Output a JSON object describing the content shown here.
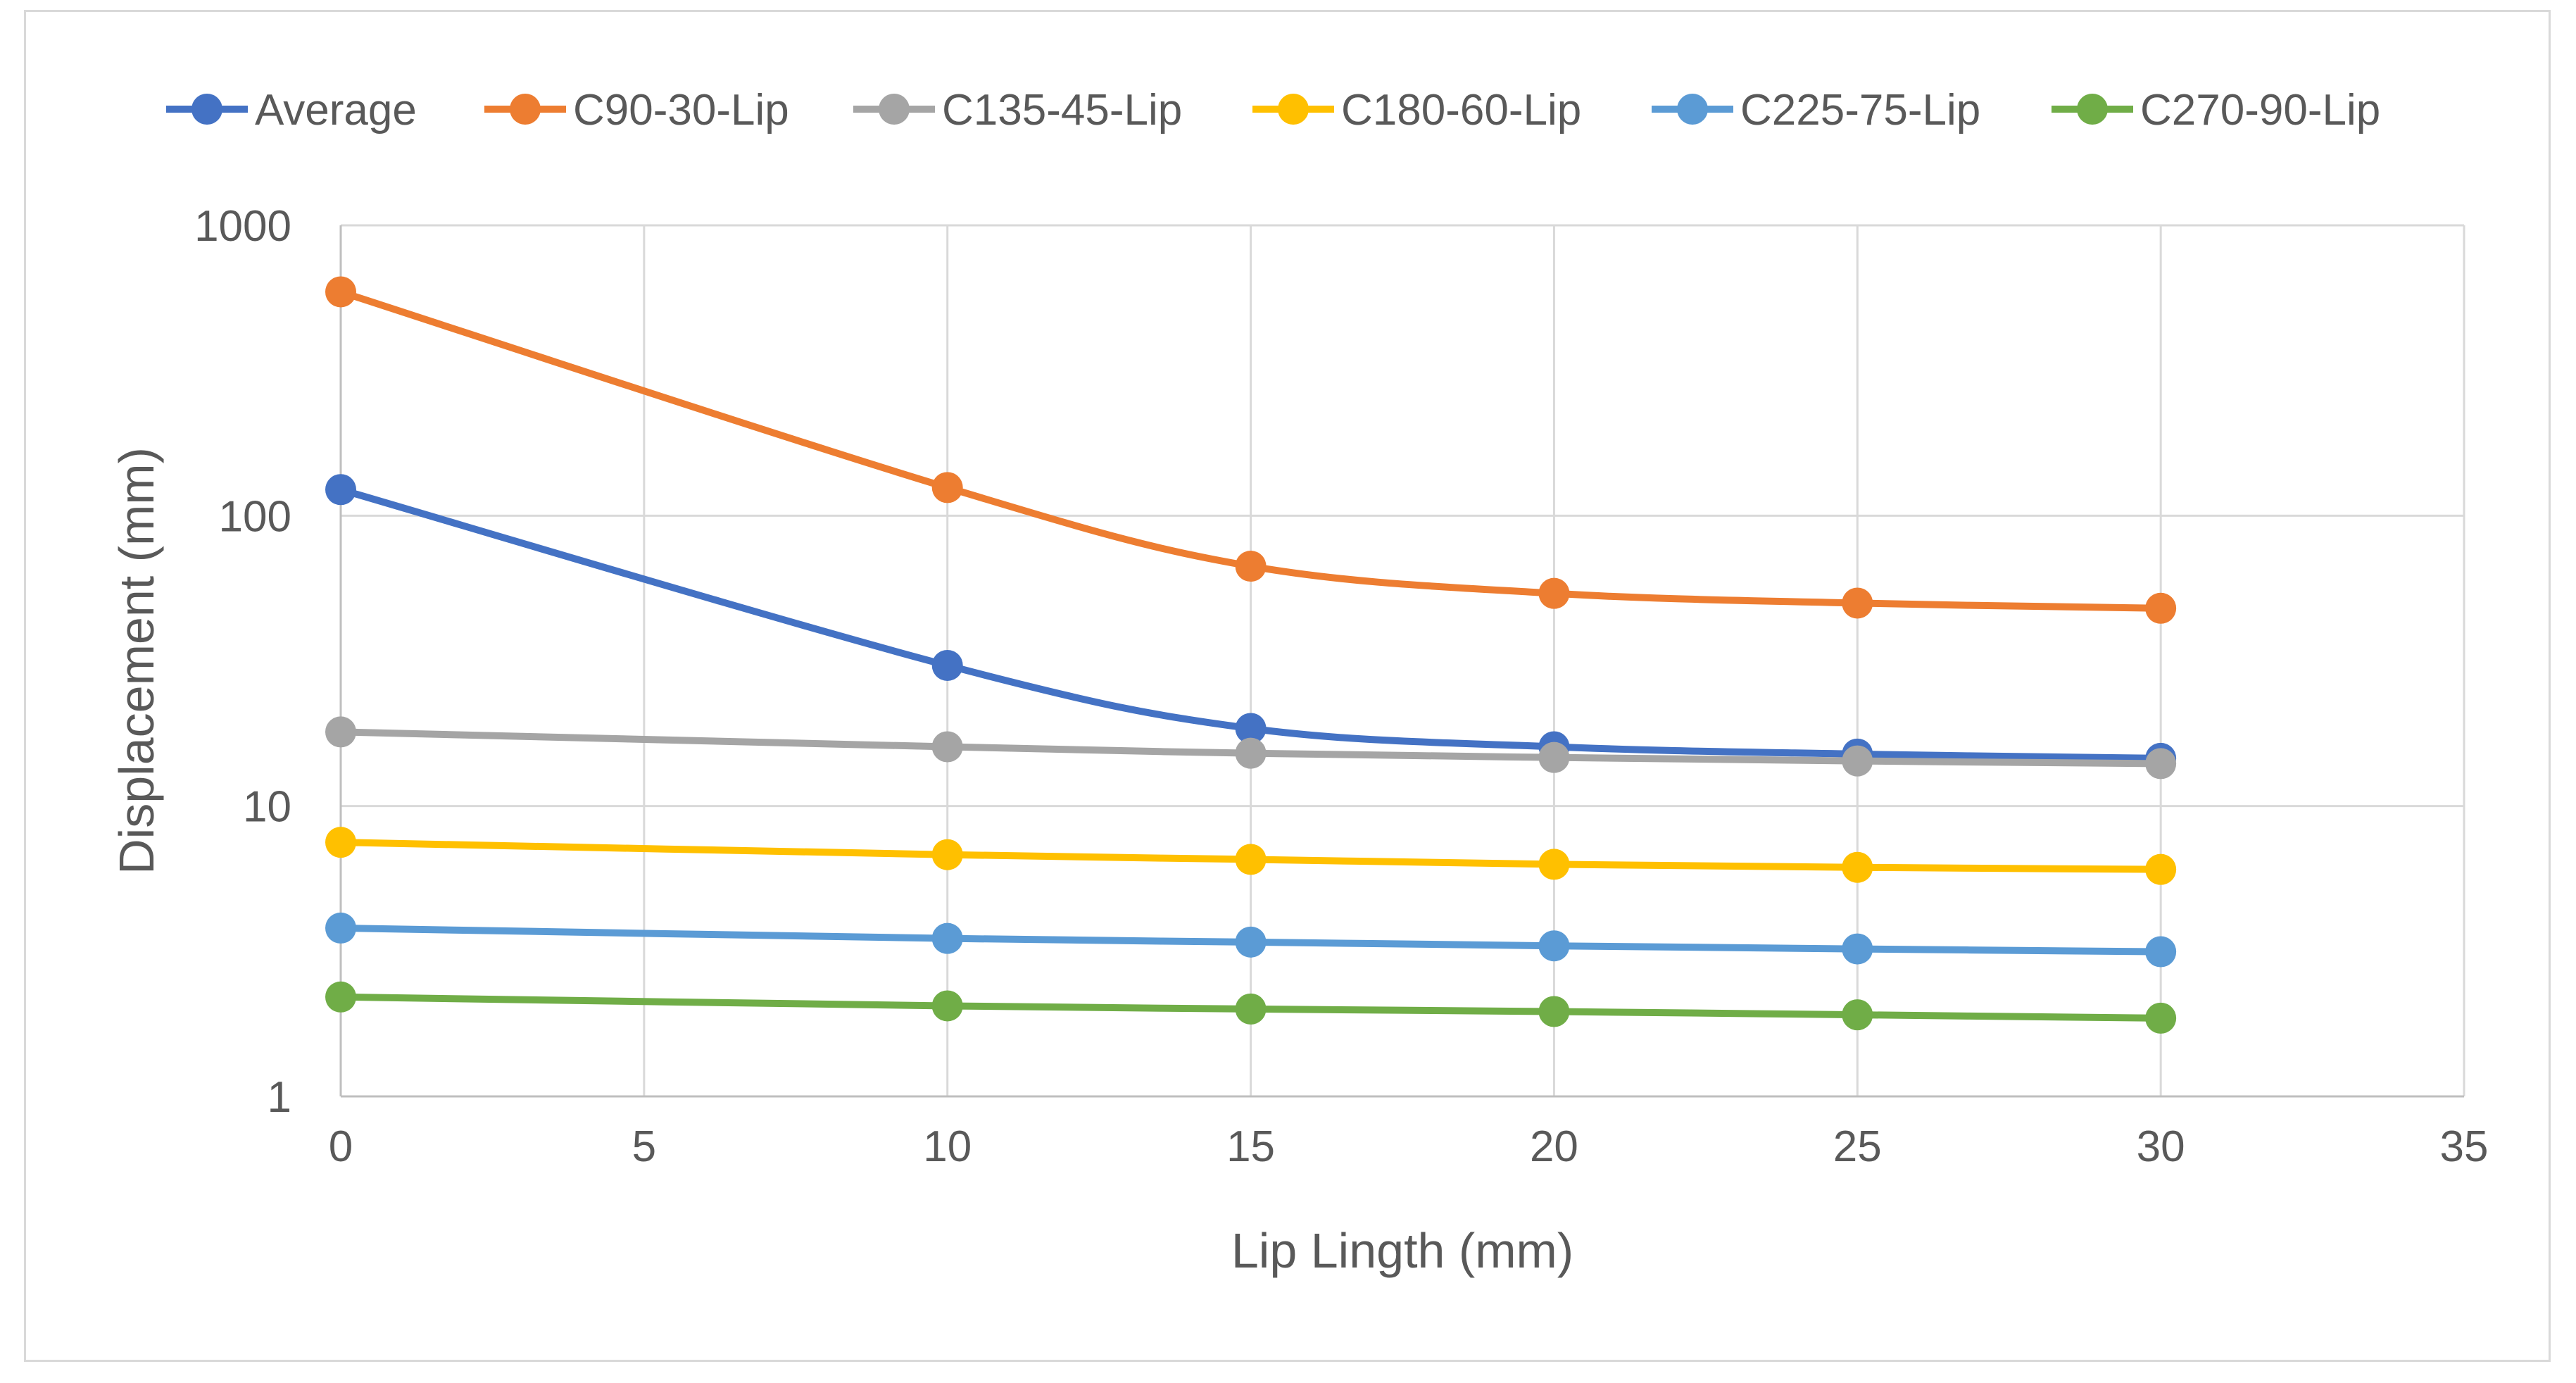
{
  "chart_data": {
    "type": "line",
    "title": "",
    "xlabel": "Lip Lingth (mm)",
    "ylabel": "Displacement (mm)",
    "xlim": [
      0,
      35
    ],
    "ylim": [
      1,
      1000
    ],
    "yscale": "log",
    "grid": true,
    "legend_position": "top",
    "x_ticks": [
      "0",
      "5",
      "10",
      "15",
      "20",
      "25",
      "30",
      "35"
    ],
    "x_tick_values": [
      0,
      5,
      10,
      15,
      20,
      25,
      30,
      35
    ],
    "y_ticks": [
      "1",
      "10",
      "100",
      "1000"
    ],
    "y_tick_values": [
      1,
      10,
      100,
      1000
    ],
    "x": [
      0,
      10,
      15,
      20,
      25,
      30
    ],
    "series": [
      {
        "name": "Average",
        "color": "#4472c4",
        "values": [
          123,
          30.5,
          18.5,
          16,
          15.1,
          14.6
        ]
      },
      {
        "name": "C90-30-Lip",
        "color": "#ed7d31",
        "values": [
          590,
          125,
          67,
          54,
          50,
          48
        ]
      },
      {
        "name": "C135-45-Lip",
        "color": "#a5a5a5",
        "values": [
          18,
          16,
          15.2,
          14.7,
          14.3,
          14
        ]
      },
      {
        "name": "C180-60-Lip",
        "color": "#ffc000",
        "values": [
          7.5,
          6.8,
          6.55,
          6.3,
          6.15,
          6.05
        ]
      },
      {
        "name": "C225-75-Lip",
        "color": "#5b9bd5",
        "values": [
          3.8,
          3.5,
          3.4,
          3.3,
          3.22,
          3.15
        ]
      },
      {
        "name": "C270-90-Lip",
        "color": "#70ad47",
        "values": [
          2.2,
          2.05,
          2.0,
          1.96,
          1.91,
          1.86
        ]
      }
    ]
  }
}
